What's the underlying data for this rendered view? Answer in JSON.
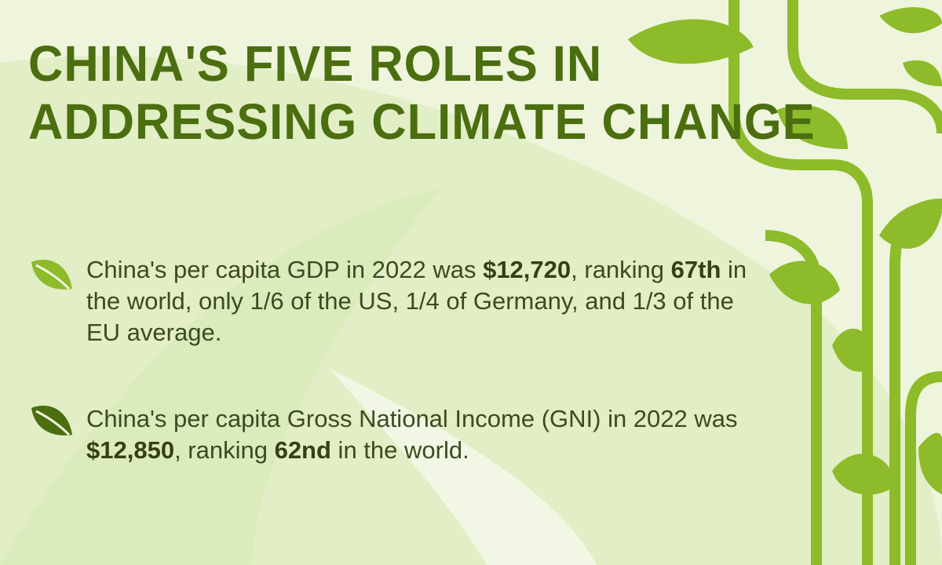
{
  "header": {
    "title_lines": [
      "CHINA'S FIVE ROLES IN",
      "ADDRESSING CLIMATE CHANGE"
    ]
  },
  "bullets": [
    {
      "segments": [
        {
          "text": "China's per capita GDP in 2022 was ",
          "bold": false
        },
        {
          "text": "$12,720",
          "bold": true
        },
        {
          "text": ", ranking ",
          "bold": false
        },
        {
          "text": "67th",
          "bold": true
        },
        {
          "text": " in the world, only 1/6 of the US, 1/4 of Germany, and 1/3 of the EU average.",
          "bold": false
        }
      ]
    },
    {
      "segments": [
        {
          "text": "China's per capita Gross National Income (GNI) in 2022 was ",
          "bold": false
        },
        {
          "text": "$12,850",
          "bold": true
        },
        {
          "text": ", ranking ",
          "bold": false
        },
        {
          "text": "62nd",
          "bold": true
        },
        {
          "text": " in the world.",
          "bold": false
        }
      ]
    }
  ]
}
